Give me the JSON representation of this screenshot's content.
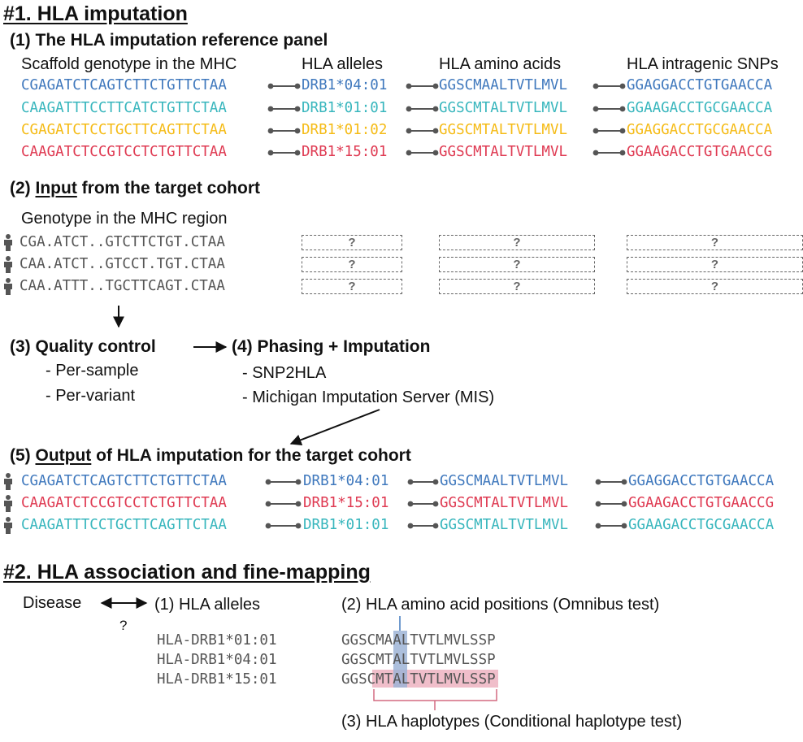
{
  "colors": {
    "blue": "#3f78bd",
    "teal": "#38b6bd",
    "yellow": "#f5bb16",
    "red": "#df3a52",
    "connector": "#555555",
    "gray_text": "#555555",
    "highlight_blue": "#9eb4d6",
    "highlight_pink": "#ecaebd",
    "bracket": "#d46a80"
  },
  "section1": {
    "title": "#1. HLA imputation",
    "panel": {
      "title": "(1) The HLA imputation reference panel",
      "columns": [
        "Scaffold genotype in the MHC",
        "HLA alleles",
        "HLA amino acids",
        "HLA intragenic SNPs"
      ],
      "rows": [
        {
          "color": "blue",
          "scaffold": "CGAGATCTCAGTCTTCTGTTCTAA",
          "allele": "DRB1*04:01",
          "aa": "GGSCMAALTVTLMVL",
          "snps": "GGAGGACCTGTGAACCA"
        },
        {
          "color": "teal",
          "scaffold": "CAAGATTTCCTTCATCTGTTCTAA",
          "allele": "DRB1*01:01",
          "aa": "GGSCMTALTVTLMVL",
          "snps": "GGAAGACCTGCGAACCA"
        },
        {
          "color": "yellow",
          "scaffold": "CGAGATCTCCTGCTTCAGTTCTAA",
          "allele": "DRB1*01:02",
          "aa": "GGSCMTALTVTLMVL",
          "snps": "GGAGGACCTGCGAACCA"
        },
        {
          "color": "red",
          "scaffold": "CAAGATCTCCGTCCTCTGTTCTAA",
          "allele": "DRB1*15:01",
          "aa": "GGSCMTALTVTLMVL",
          "snps": "GGAAGACCTGTGAACCG"
        }
      ]
    },
    "input": {
      "title_prefix": "(2) ",
      "title_underlined": "Input",
      "title_suffix": " from the target cohort",
      "label": "Genotype in the MHC region",
      "rows": [
        "CGA.ATCT..GTCTTCTGT.CTAA",
        "CAA.ATCT..GTCCT.TGT.CTAA",
        "CAA.ATTT..TGCTTCAGT.CTAA"
      ],
      "unknown": "?"
    },
    "qc": {
      "title": "(3) Quality control",
      "items": [
        "- Per-sample",
        "- Per-variant"
      ]
    },
    "phasing": {
      "title": "(4) Phasing + Imputation",
      "items": [
        "- SNP2HLA",
        "- Michigan Imputation Server (MIS)"
      ]
    },
    "output": {
      "title_prefix": "(5) ",
      "title_underlined": "Output",
      "title_suffix": " of HLA imputation for the target cohort",
      "rows": [
        {
          "color": "blue",
          "scaffold": "CGAGATCTCAGTCTTCTGTTCTAA",
          "allele": "DRB1*04:01",
          "aa": "GGSCMAALTVTLMVL",
          "snps": "GGAGGACCTGTGAACCA"
        },
        {
          "color": "red",
          "scaffold": "CAAGATCTCCGTCCTCTGTTCTAA",
          "allele": "DRB1*15:01",
          "aa": "GGSCMTALTVTLMVL",
          "snps": "GGAAGACCTGTGAACCG"
        },
        {
          "color": "teal",
          "scaffold": "CAAGATTTCCTGCTTCAGTTCTAA",
          "allele": "DRB1*01:01",
          "aa": "GGSCMTALTVTLMVL",
          "snps": "GGAAGACCTGCGAACCA"
        }
      ]
    }
  },
  "section2": {
    "title": "#2. HLA association and fine-mapping",
    "disease": "Disease",
    "question": "?",
    "alleles_title": "(1) HLA alleles",
    "alleles": [
      "HLA-DRB1*01:01",
      "HLA-DRB1*04:01",
      "HLA-DRB1*15:01"
    ],
    "aa_title": "(2) HLA amino acid positions (Omnibus test)",
    "aa_seqs": [
      "GGSCMAALTVTLMVLSSP",
      "GGSCMTALTVTLMVLSSP",
      "GGSCMTALTVTLMVLSSP"
    ],
    "haplo_title": "(3) HLA haplotypes (Conditional haplotype test)"
  }
}
